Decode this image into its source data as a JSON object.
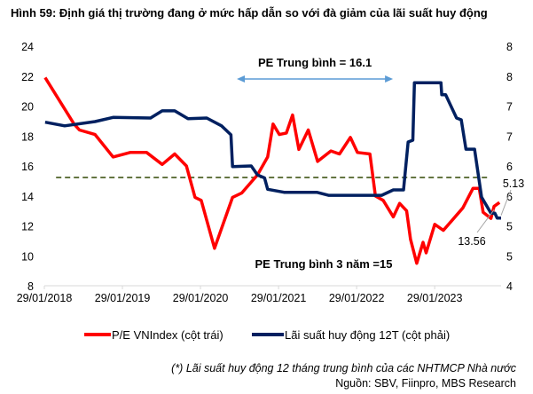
{
  "chart_data": {
    "type": "line",
    "title": "Hình 59: Định giá thị trường đang ở mức hấp dẫn so với đà giảm của lãi suất huy động",
    "x_tick_labels": [
      "29/01/2018",
      "29/01/2019",
      "29/01/2020",
      "29/01/2021",
      "29/01/2022",
      "29/01/2023"
    ],
    "x_ticks": [
      2018.08,
      2019.08,
      2020.08,
      2021.08,
      2022.08,
      2023.08
    ],
    "xlim": [
      2018.08,
      2023.93
    ],
    "y_left": {
      "ylim": [
        8,
        24
      ],
      "tick_labels": [
        "8",
        "10",
        "12",
        "14",
        "16",
        "18",
        "20",
        "22",
        "24"
      ],
      "ticks": [
        8,
        10,
        12,
        14,
        16,
        18,
        20,
        22,
        24
      ]
    },
    "y_right": {
      "ylim": [
        4,
        8
      ],
      "tick_labels": [
        "4",
        "5",
        "5",
        "6",
        "6",
        "7",
        "7",
        "8",
        "8"
      ],
      "ticks": [
        4,
        4.5,
        5,
        5.5,
        6,
        6.5,
        7,
        7.5,
        8
      ]
    },
    "grid": false,
    "legend_position": "bottom",
    "series": [
      {
        "name": "P/E VNIndex (cột trái)",
        "axis": "left",
        "color": "#ff0000",
        "x": [
          2018.09,
          2018.46,
          2018.53,
          2018.73,
          2018.96,
          2019.18,
          2019.39,
          2019.59,
          2019.75,
          2019.9,
          2020.01,
          2020.09,
          2020.26,
          2020.49,
          2020.61,
          2020.81,
          2020.94,
          2021.01,
          2021.09,
          2021.18,
          2021.26,
          2021.34,
          2021.46,
          2021.58,
          2021.75,
          2021.86,
          2022.0,
          2022.09,
          2022.25,
          2022.32,
          2022.42,
          2022.55,
          2022.63,
          2022.72,
          2022.77,
          2022.85,
          2022.93,
          2022.97,
          2023.08,
          2023.19,
          2023.44,
          2023.57,
          2023.65,
          2023.7,
          2023.8,
          2023.84,
          2023.91
        ],
        "values": [
          21.9,
          18.8,
          18.4,
          18.1,
          16.6,
          16.9,
          16.9,
          16.1,
          16.8,
          16.0,
          13.9,
          13.7,
          10.5,
          13.9,
          14.2,
          15.4,
          16.6,
          18.8,
          18.1,
          18.2,
          19.4,
          17.1,
          18.4,
          16.3,
          17.0,
          16.8,
          17.9,
          16.9,
          16.8,
          14.0,
          13.7,
          12.6,
          13.5,
          13.0,
          11.1,
          9.5,
          10.9,
          10.2,
          12.1,
          11.7,
          13.2,
          14.5,
          14.5,
          12.9,
          12.5,
          13.3,
          13.56
        ]
      },
      {
        "name": "Lãi suất huy động 12T (cột phải)",
        "axis": "right",
        "color": "#002060",
        "x": [
          2018.09,
          2018.34,
          2018.73,
          2018.96,
          2019.44,
          2019.59,
          2019.75,
          2019.92,
          2020.16,
          2020.35,
          2020.47,
          2020.49,
          2020.73,
          2020.81,
          2020.9,
          2020.94,
          2021.15,
          2021.57,
          2021.72,
          2022.4,
          2022.55,
          2022.68,
          2022.74,
          2022.8,
          2022.82,
          2023.16,
          2023.17,
          2023.22,
          2023.36,
          2023.42,
          2023.48,
          2023.59,
          2023.68,
          2023.8,
          2023.85,
          2023.88,
          2023.93
        ],
        "values": [
          6.73,
          6.67,
          6.74,
          6.81,
          6.8,
          6.92,
          6.92,
          6.79,
          6.8,
          6.67,
          6.52,
          5.99,
          6.0,
          5.85,
          5.8,
          5.61,
          5.56,
          5.56,
          5.51,
          5.51,
          5.6,
          5.6,
          6.4,
          6.43,
          7.39,
          7.39,
          7.19,
          7.19,
          6.8,
          6.77,
          6.28,
          6.28,
          5.48,
          5.21,
          5.21,
          5.13,
          5.13
        ]
      }
    ],
    "reference_line": {
      "label": "PE Trung bình 3 năm =15",
      "value": 15,
      "axis": "left",
      "color": "#4f6228",
      "x_range": [
        2018.23,
        2023.76
      ]
    },
    "range_arrow": {
      "label": "PE Trung bình = 16.1",
      "x_range": [
        2021.0,
        2023.0
      ],
      "color": "#5b9bd5"
    },
    "annotations": [
      {
        "text": "13.56",
        "series": "P/E VNIndex (cột trái)"
      },
      {
        "text": "5.13",
        "series": "Lãi suất huy động 12T (cột phải)"
      }
    ]
  },
  "footer": {
    "note": "(*) Lãi suất huy động 12 tháng trung bình của các NHTMCP Nhà nước",
    "source": "Nguồn: SBV, Fiinpro, MBS Research"
  }
}
